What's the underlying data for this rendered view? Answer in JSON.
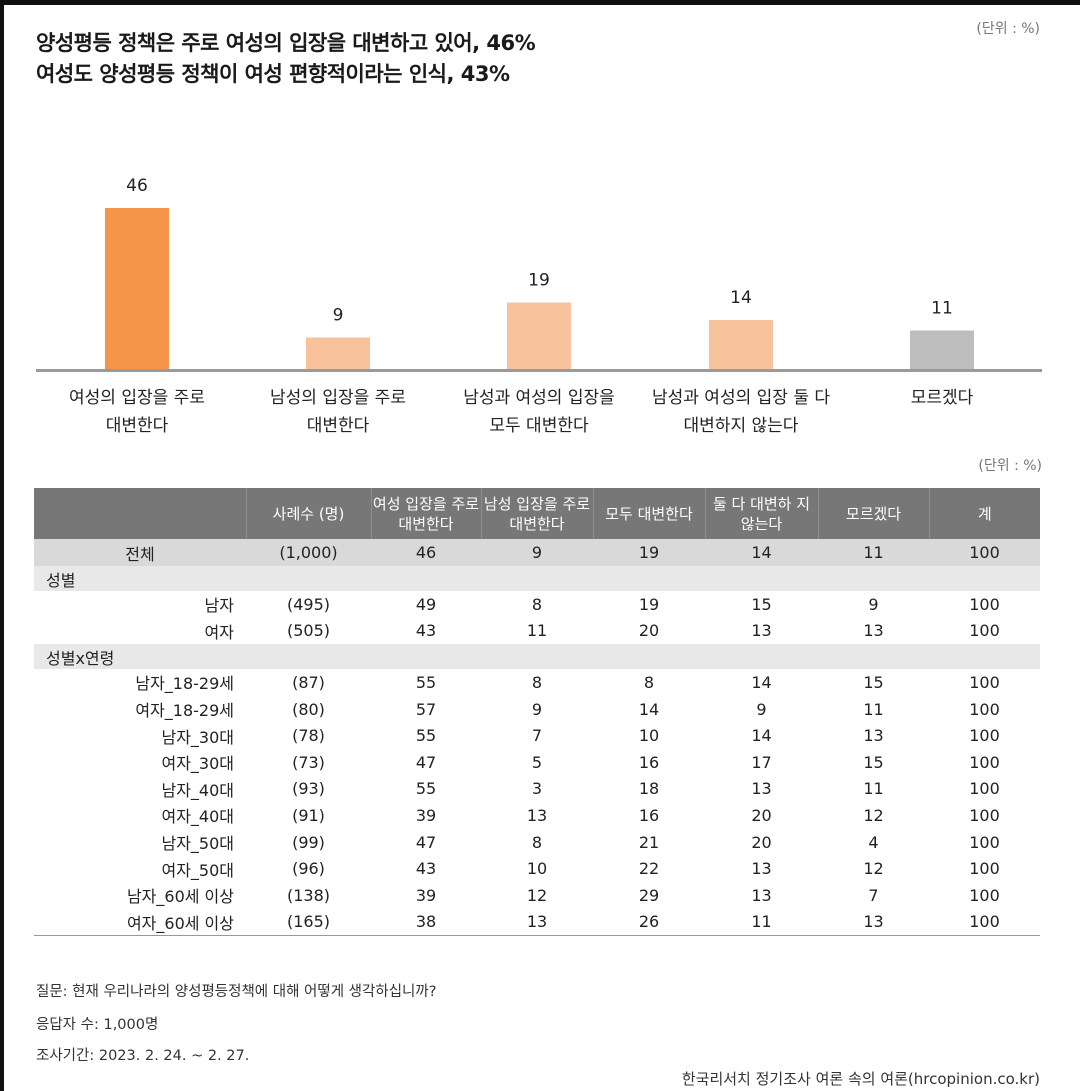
{
  "title": {
    "line1": "양성평등 정책은 주로 여성의 입장을 대변하고 있어, 46%",
    "line2": "여성도 양성평등 정책이 여성 편향적이라는 인식, 43%"
  },
  "unit_label": "(단위 : %)",
  "colors": {
    "bar_highlight": "#f5954a",
    "bar_light": "#f7c29c",
    "bar_gray": "#bdbdbd",
    "header_bg": "#777777",
    "total_row_bg": "#d9d9d9",
    "section_row_bg": "#e8e8e8"
  },
  "chart_data": {
    "type": "bar",
    "categories": [
      [
        "여성의 입장을 주로",
        "대변한다"
      ],
      [
        "남성의 입장을 주로",
        "대변한다"
      ],
      [
        "남성과 여성의 입장을",
        "모두 대변한다"
      ],
      [
        "남성과 여성의 입장 둘 다",
        "대변하지 않는다"
      ],
      [
        "모르겠다"
      ]
    ],
    "values": [
      46,
      9,
      19,
      14,
      11
    ],
    "bar_colors": [
      "#f5954a",
      "#f7c29c",
      "#f7c29c",
      "#f7c29c",
      "#bdbdbd"
    ],
    "ylim": [
      0,
      50
    ]
  },
  "table": {
    "headers": [
      "",
      "사례수 (명)",
      "여성 입장을 주로 대변한다",
      "남성 입장을 주로 대변한다",
      "모두 대변한다",
      "둘 다 대변하 지 않는다",
      "모르겠다",
      "계"
    ],
    "total": {
      "label": "전체",
      "n": "(1,000)",
      "values": [
        "46",
        "9",
        "19",
        "14",
        "11",
        "100"
      ]
    },
    "sections": [
      {
        "name": "성별",
        "rows": [
          {
            "label": "남자",
            "n": "(495)",
            "values": [
              "49",
              "8",
              "19",
              "15",
              "9",
              "100"
            ]
          },
          {
            "label": "여자",
            "n": "(505)",
            "values": [
              "43",
              "11",
              "20",
              "13",
              "13",
              "100"
            ]
          }
        ]
      },
      {
        "name": "성별x연령",
        "rows": [
          {
            "label": "남자_18-29세",
            "n": "(87)",
            "values": [
              "55",
              "8",
              "8",
              "14",
              "15",
              "100"
            ]
          },
          {
            "label": "여자_18-29세",
            "n": "(80)",
            "values": [
              "57",
              "9",
              "14",
              "9",
              "11",
              "100"
            ]
          },
          {
            "label": "남자_30대",
            "n": "(78)",
            "values": [
              "55",
              "7",
              "10",
              "14",
              "13",
              "100"
            ]
          },
          {
            "label": "여자_30대",
            "n": "(73)",
            "values": [
              "47",
              "5",
              "16",
              "17",
              "15",
              "100"
            ]
          },
          {
            "label": "남자_40대",
            "n": "(93)",
            "values": [
              "55",
              "3",
              "18",
              "13",
              "11",
              "100"
            ]
          },
          {
            "label": "여자_40대",
            "n": "(91)",
            "values": [
              "39",
              "13",
              "16",
              "20",
              "12",
              "100"
            ]
          },
          {
            "label": "남자_50대",
            "n": "(99)",
            "values": [
              "47",
              "8",
              "21",
              "20",
              "4",
              "100"
            ]
          },
          {
            "label": "여자_50대",
            "n": "(96)",
            "values": [
              "43",
              "10",
              "22",
              "13",
              "12",
              "100"
            ]
          },
          {
            "label": "남자_60세 이상",
            "n": "(138)",
            "values": [
              "39",
              "12",
              "29",
              "13",
              "7",
              "100"
            ]
          },
          {
            "label": "여자_60세 이상",
            "n": "(165)",
            "values": [
              "38",
              "13",
              "26",
              "11",
              "13",
              "100"
            ]
          }
        ]
      }
    ]
  },
  "notes": {
    "question": "질문: 현재 우리나라의 양성평등정책에 대해 어떻게 생각하십니까?",
    "respondents": "응답자 수: 1,000명",
    "period": "조사기간: 2023. 2. 24. ~ 2. 27.",
    "source": "한국리서치 정기조사 여론 속의 여론(hrcopinion.co.kr)"
  }
}
